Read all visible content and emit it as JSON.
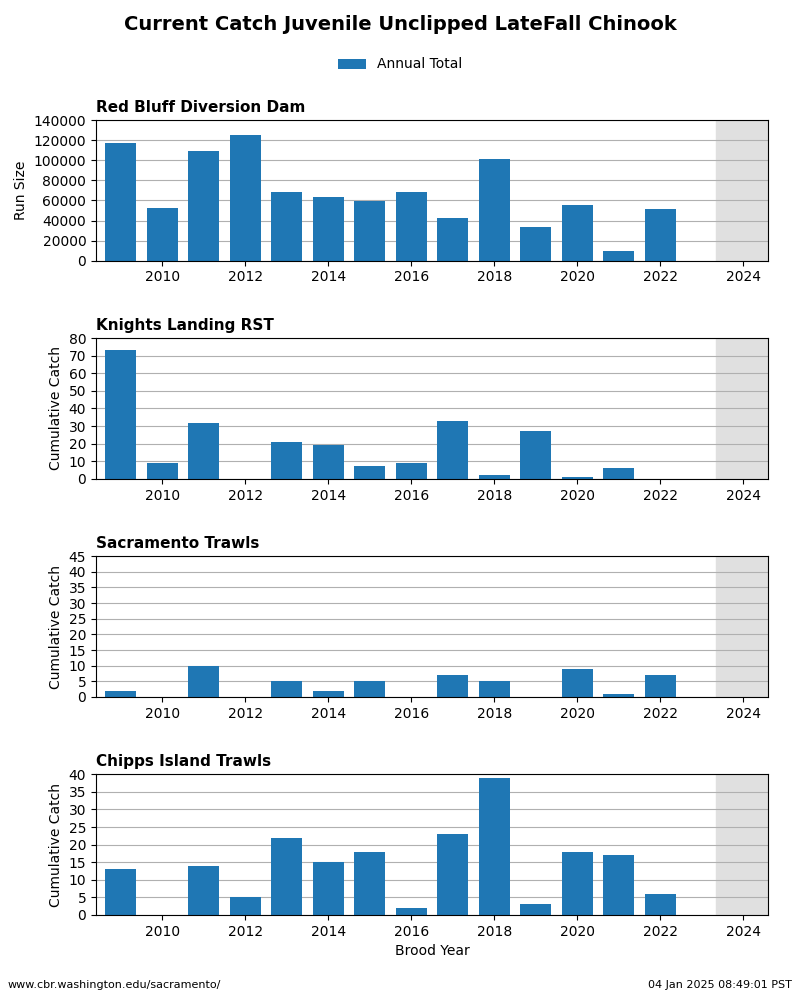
{
  "title": "Current Catch Juvenile Unclipped LateFall Chinook",
  "legend": "upper center",
  "annotations": [
    "www.cbr.washington.edu/sacramento/",
    "04 Jan 2025 08:49:01 PST"
  ],
  "chart_data": [
    {
      "type": "bar",
      "title": "Red Bluff Diversion Dam",
      "ylabel": "Run Size",
      "x": [
        2009,
        2010,
        2011,
        2012,
        2013,
        2014,
        2015,
        2016,
        2017,
        2018,
        2019,
        2020,
        2021,
        2022,
        2023
      ],
      "series": [
        {
          "name": "Annual Total",
          "values": [
            117000,
            52000,
            109000,
            125000,
            68000,
            63000,
            59000,
            68000,
            42000,
            101000,
            34000,
            55000,
            10000,
            51000,
            0
          ]
        }
      ],
      "xlim": [
        2008.4,
        2024.6
      ],
      "xticks": [
        2010,
        2012,
        2014,
        2016,
        2018,
        2020,
        2022,
        2024
      ],
      "ylim": [
        0,
        140000
      ],
      "yticks": [
        0,
        20000,
        40000,
        60000,
        80000,
        100000,
        120000,
        140000
      ],
      "shade_x": [
        2023.35,
        2024.6
      ],
      "grid": "y"
    },
    {
      "type": "bar",
      "title": "Knights Landing RST",
      "ylabel": "Cumulative Catch",
      "x": [
        2009,
        2010,
        2011,
        2012,
        2013,
        2014,
        2015,
        2016,
        2017,
        2018,
        2019,
        2020,
        2021,
        2022,
        2023
      ],
      "series": [
        {
          "name": "Annual Total",
          "values": [
            73,
            9,
            32,
            0,
            21,
            19,
            7,
            9,
            33,
            2,
            27,
            1,
            6,
            0,
            0
          ]
        }
      ],
      "xlim": [
        2008.4,
        2024.6
      ],
      "xticks": [
        2010,
        2012,
        2014,
        2016,
        2018,
        2020,
        2022,
        2024
      ],
      "ylim": [
        0,
        80
      ],
      "yticks": [
        0,
        10,
        20,
        30,
        40,
        50,
        60,
        70,
        80
      ],
      "shade_x": [
        2023.35,
        2024.6
      ],
      "grid": "y"
    },
    {
      "type": "bar",
      "title": "Sacramento Trawls",
      "ylabel": "Cumulative Catch",
      "x": [
        2009,
        2010,
        2011,
        2012,
        2013,
        2014,
        2015,
        2016,
        2017,
        2018,
        2019,
        2020,
        2021,
        2022,
        2023
      ],
      "series": [
        {
          "name": "Annual Total",
          "values": [
            2,
            0,
            10,
            0,
            5,
            2,
            5,
            0,
            7,
            5,
            0,
            9,
            1,
            7,
            0
          ]
        }
      ],
      "xlim": [
        2008.4,
        2024.6
      ],
      "xticks": [
        2010,
        2012,
        2014,
        2016,
        2018,
        2020,
        2022,
        2024
      ],
      "ylim": [
        0,
        45
      ],
      "yticks": [
        0,
        5,
        10,
        15,
        20,
        25,
        30,
        35,
        40,
        45
      ],
      "shade_x": [
        2023.35,
        2024.6
      ],
      "grid": "y"
    },
    {
      "type": "bar",
      "title": "Chipps Island Trawls",
      "ylabel": "Cumulative Catch",
      "xlabel": "Brood Year",
      "x": [
        2009,
        2010,
        2011,
        2012,
        2013,
        2014,
        2015,
        2016,
        2017,
        2018,
        2019,
        2020,
        2021,
        2022,
        2023
      ],
      "series": [
        {
          "name": "Annual Total",
          "values": [
            13,
            0,
            14,
            5,
            22,
            15,
            18,
            2,
            23,
            39,
            3,
            18,
            17,
            6,
            0
          ]
        }
      ],
      "xlim": [
        2008.4,
        2024.6
      ],
      "xticks": [
        2010,
        2012,
        2014,
        2016,
        2018,
        2020,
        2022,
        2024
      ],
      "ylim": [
        0,
        40
      ],
      "yticks": [
        0,
        5,
        10,
        15,
        20,
        25,
        30,
        35,
        40
      ],
      "shade_x": [
        2023.35,
        2024.6
      ],
      "grid": "y"
    }
  ]
}
